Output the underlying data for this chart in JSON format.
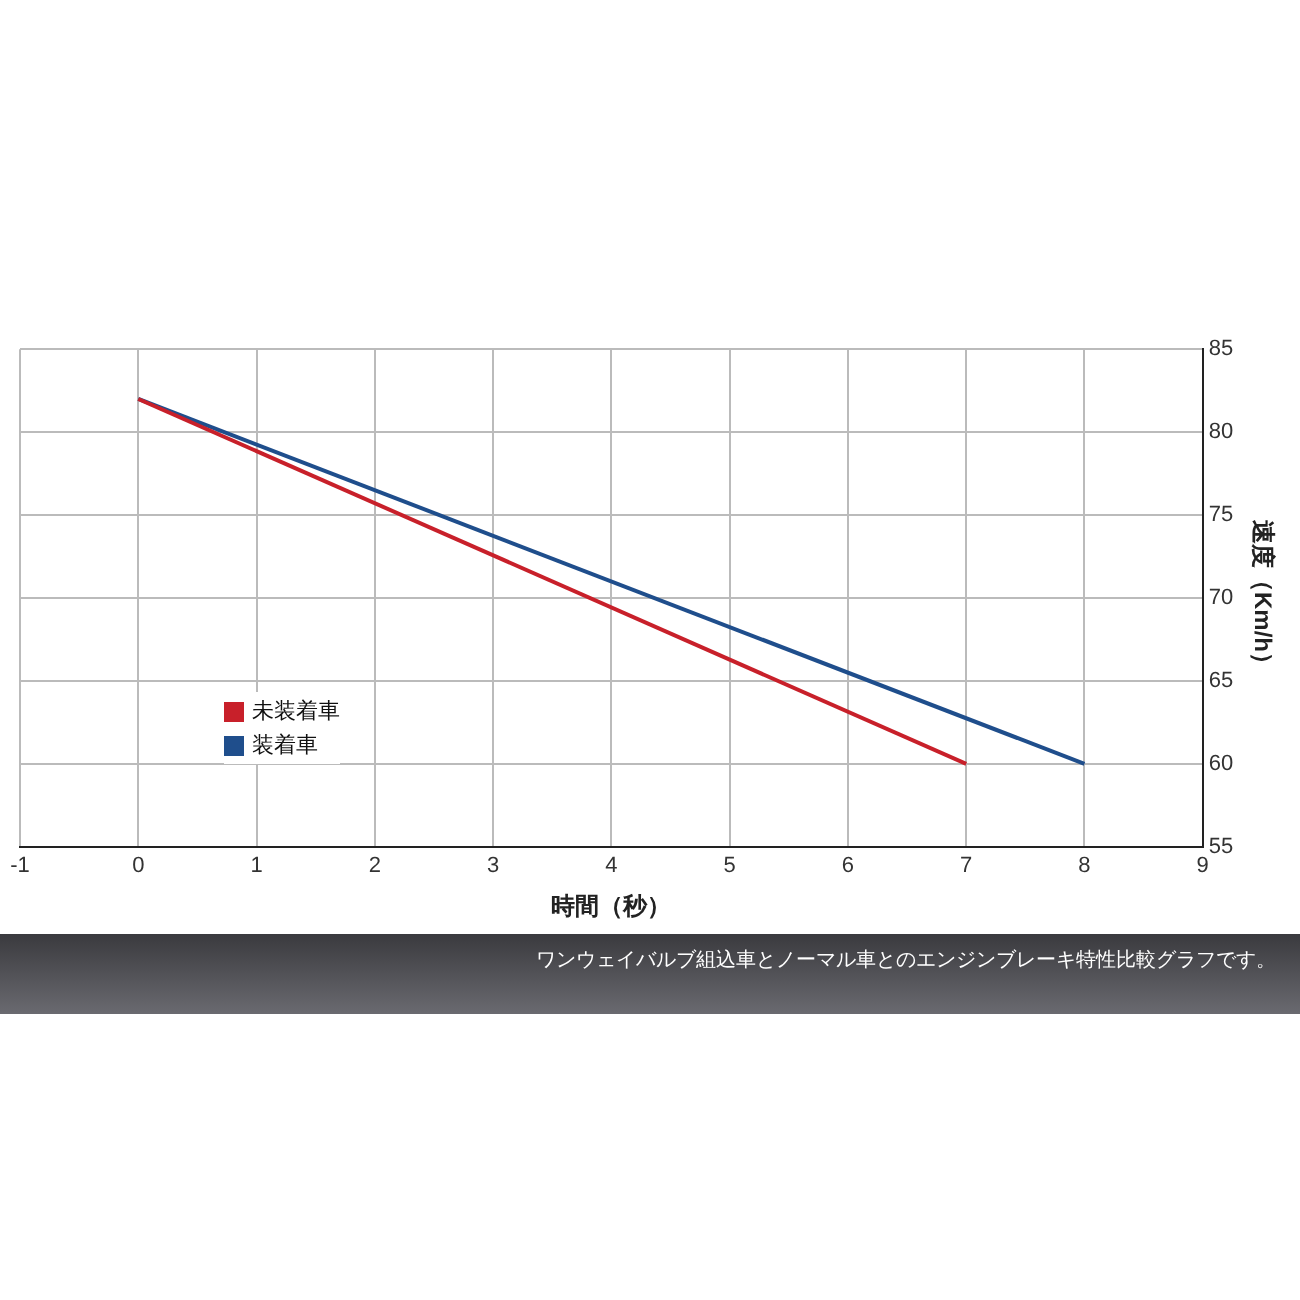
{
  "chart_data": {
    "type": "line",
    "xlabel": "時間（秒）",
    "ylabel": "速度（Km/h）",
    "x": [
      0,
      7
    ],
    "series": [
      {
        "name": "未装着車",
        "color": "#c8202a",
        "values": [
          82,
          60
        ]
      },
      {
        "name": "装着車",
        "color": "#1f4e8c",
        "x": [
          0,
          8
        ],
        "values": [
          82,
          60
        ]
      }
    ],
    "xlim": [
      -1,
      9
    ],
    "xticks": [
      -1,
      0,
      1,
      2,
      3,
      4,
      5,
      6,
      7,
      8,
      9
    ],
    "ylim": [
      55,
      85
    ],
    "yticks": [
      55,
      60,
      65,
      70,
      75,
      80,
      85
    ],
    "grid": true,
    "legend": "left",
    "marker": "none",
    "line_style": "solid",
    "annotations": [
      "ワンウェイバルブ組込車とノーマル車とのエンジンブレーキ特性比較グラフです。"
    ]
  }
}
